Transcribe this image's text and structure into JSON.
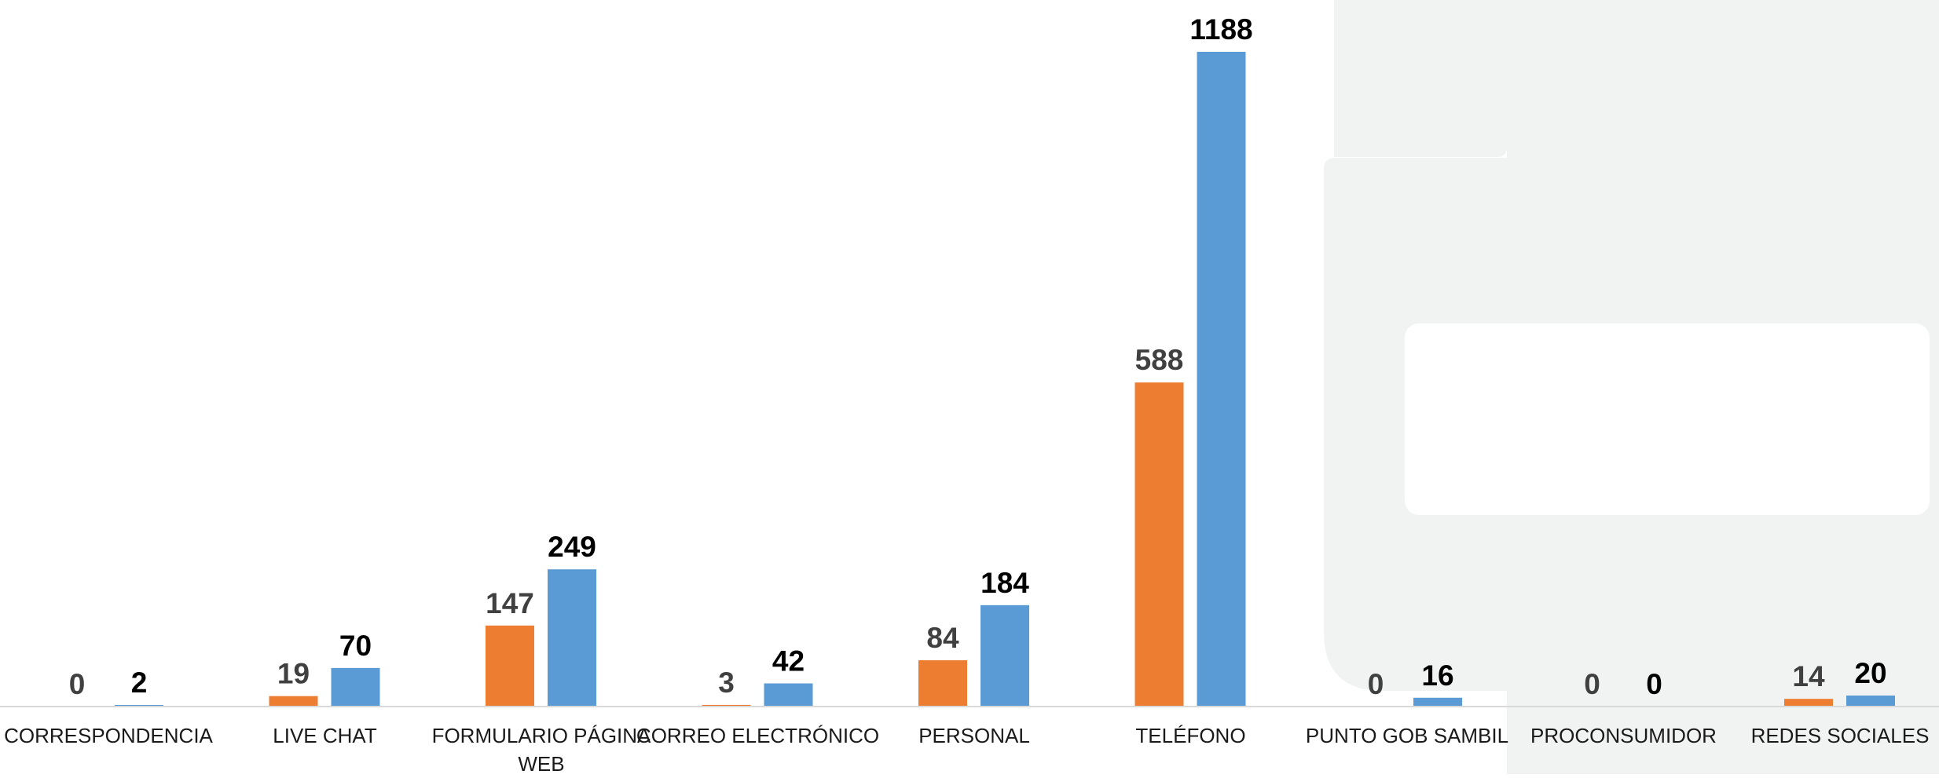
{
  "chart_data": {
    "type": "bar",
    "title": "",
    "xlabel": "",
    "ylabel": "",
    "ylim": [
      0,
      1188
    ],
    "grid": false,
    "legend": "none",
    "categories": [
      [
        "CORRESPONDENCIA"
      ],
      [
        "LIVE CHAT"
      ],
      [
        "FORMULARIO PÁGINA",
        "WEB"
      ],
      [
        "CORREO ELECTRÓNICO"
      ],
      [
        "PERSONAL"
      ],
      [
        "TELÉFONO"
      ],
      [
        "PUNTO GOB SAMBIL"
      ],
      [
        "PROCONSUMIDOR"
      ],
      [
        "REDES SOCIALES"
      ]
    ],
    "series": [
      {
        "color": "#ED7D31",
        "label_color": "#404040",
        "values": [
          0,
          19,
          147,
          3,
          84,
          588,
          0,
          0,
          14
        ]
      },
      {
        "color": "#5B9BD5",
        "label_color": "#000000",
        "values": [
          2,
          70,
          249,
          42,
          184,
          1188,
          16,
          0,
          20
        ]
      }
    ]
  },
  "colors": {
    "panel": "#F1F2F2",
    "axis": "#D9D9D9"
  }
}
